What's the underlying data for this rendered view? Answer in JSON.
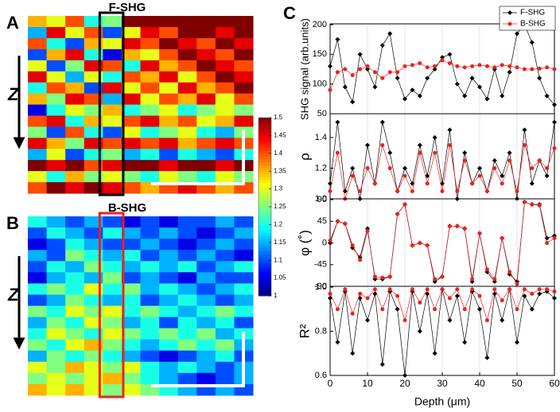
{
  "chart_data": [
    {
      "type": "heatmap",
      "label": "A",
      "title": "F-SHG",
      "axis_label": "Z",
      "zlim": [
        1,
        1.5
      ],
      "zticks": [
        1.5,
        1.45,
        1.4,
        1.35,
        1.3,
        1.25,
        1.2,
        1.15,
        1.1,
        1.05,
        1
      ],
      "values": [
        [
          1.35,
          1.3,
          1.4,
          1.2,
          1.25,
          1.5,
          1.5,
          1.5,
          1.5,
          1.5,
          1.5,
          1.5
        ],
        [
          1.15,
          1.45,
          1.3,
          1.4,
          1.1,
          1.3,
          1.45,
          1.4,
          1.5,
          1.5,
          1.45,
          1.5
        ],
        [
          1.4,
          1.2,
          1.1,
          1.35,
          1.3,
          1.45,
          1.4,
          1.5,
          1.45,
          1.4,
          1.5,
          1.45
        ],
        [
          1.1,
          1.35,
          1.45,
          1.2,
          1.05,
          1.35,
          1.3,
          1.4,
          1.5,
          1.45,
          1.4,
          1.5
        ],
        [
          1.3,
          1.1,
          1.25,
          1.45,
          1.4,
          1.2,
          1.45,
          1.35,
          1.4,
          1.5,
          1.45,
          1.4
        ],
        [
          1.45,
          1.3,
          1.15,
          1.3,
          1.2,
          1.4,
          1.35,
          1.45,
          1.3,
          1.4,
          1.5,
          1.45
        ],
        [
          1.2,
          1.4,
          1.35,
          1.1,
          1.45,
          1.3,
          1.4,
          1.3,
          1.45,
          1.35,
          1.4,
          1.5
        ],
        [
          1.35,
          1.25,
          1.45,
          1.4,
          1.15,
          1.45,
          1.3,
          1.4,
          1.35,
          1.45,
          1.3,
          1.4
        ],
        [
          1.05,
          1.2,
          1.3,
          1.25,
          1.35,
          1.2,
          1.25,
          1.3,
          1.2,
          1.25,
          1.3,
          1.25
        ],
        [
          1.4,
          1.45,
          1.2,
          1.35,
          1.3,
          1.4,
          1.45,
          1.35,
          1.4,
          1.3,
          1.35,
          1.45
        ],
        [
          1.25,
          1.1,
          1.4,
          1.2,
          1.1,
          1.3,
          1.2,
          1.25,
          1.3,
          1.2,
          1.15,
          1.25
        ],
        [
          1.45,
          1.35,
          1.25,
          1.45,
          1.4,
          1.45,
          1.4,
          1.45,
          1.35,
          1.4,
          1.45,
          1.4
        ],
        [
          1.15,
          1.3,
          1.1,
          1.2,
          1.25,
          1.15,
          1.2,
          1.1,
          1.2,
          1.15,
          1.1,
          1.2
        ],
        [
          1.5,
          1.45,
          1.5,
          1.4,
          1.45,
          1.5,
          1.5,
          1.45,
          1.5,
          1.5,
          1.45,
          1.5
        ],
        [
          1.3,
          1.2,
          1.35,
          1.25,
          1.3,
          1.25,
          1.2,
          1.3,
          1.25,
          1.2,
          1.3,
          1.25
        ],
        [
          1.4,
          1.5,
          1.45,
          1.5,
          1.45,
          1.4,
          1.35,
          1.4,
          1.45,
          1.4,
          1.35,
          1.4
        ]
      ]
    },
    {
      "type": "heatmap",
      "label": "B",
      "title": "B-SHG",
      "axis_label": "Z",
      "zlim": [
        1,
        1.5
      ],
      "values": [
        [
          1.2,
          1.15,
          1.1,
          1.15,
          1.1,
          1.05,
          1.1,
          1.05,
          1.1,
          1.1,
          1.15,
          1.1
        ],
        [
          1.1,
          1.2,
          1.15,
          1.1,
          1.2,
          1.15,
          1.1,
          1.15,
          1.1,
          1.05,
          1.1,
          1.15
        ],
        [
          1.05,
          1.1,
          1.2,
          1.15,
          1.1,
          1.1,
          1.15,
          1.1,
          1.05,
          1.1,
          1.15,
          1.1
        ],
        [
          1.15,
          1.1,
          1.25,
          1.2,
          1.15,
          1.2,
          1.1,
          1.15,
          1.1,
          1.15,
          1.1,
          1.05
        ],
        [
          1.1,
          1.2,
          1.15,
          1.25,
          1.2,
          1.15,
          1.2,
          1.15,
          1.2,
          1.1,
          1.15,
          1.2
        ],
        [
          1.05,
          1.15,
          1.2,
          1.15,
          1.25,
          1.1,
          1.15,
          1.1,
          1.05,
          1.15,
          1.1,
          1.1
        ],
        [
          1.2,
          1.25,
          1.2,
          1.3,
          1.2,
          1.25,
          1.15,
          1.2,
          1.15,
          1.1,
          1.15,
          1.2
        ],
        [
          1.1,
          1.15,
          1.25,
          1.2,
          1.15,
          1.2,
          1.1,
          1.15,
          1.2,
          1.15,
          1.1,
          1.15
        ],
        [
          1.25,
          1.2,
          1.3,
          1.25,
          1.3,
          1.2,
          1.25,
          1.2,
          1.15,
          1.2,
          1.25,
          1.2
        ],
        [
          1.15,
          1.25,
          1.2,
          1.3,
          1.25,
          1.15,
          1.2,
          1.1,
          1.2,
          1.15,
          1.2,
          1.1
        ],
        [
          1.2,
          1.3,
          1.25,
          1.2,
          1.3,
          1.25,
          1.2,
          1.25,
          1.2,
          1.25,
          1.15,
          1.2
        ],
        [
          1.25,
          1.2,
          1.3,
          1.35,
          1.25,
          1.2,
          1.15,
          1.2,
          1.25,
          1.2,
          1.25,
          1.15
        ],
        [
          1.15,
          1.25,
          1.2,
          1.25,
          1.2,
          1.15,
          1.1,
          1.05,
          1.1,
          1.15,
          1.2,
          1.1
        ],
        [
          1.3,
          1.25,
          1.35,
          1.3,
          1.25,
          1.3,
          1.2,
          1.15,
          1.2,
          1.15,
          1.1,
          1.15
        ],
        [
          1.25,
          1.3,
          1.25,
          1.3,
          1.35,
          1.25,
          1.2,
          1.15,
          1.1,
          1.05,
          1.1,
          1.15
        ],
        [
          1.35,
          1.3,
          1.35,
          1.3,
          1.25,
          1.3,
          1.25,
          1.2,
          1.15,
          1.1,
          1.15,
          1.1
        ]
      ]
    },
    {
      "type": "line",
      "label": "C",
      "xlabel": "Depth (μm)",
      "xlim": [
        0,
        60
      ],
      "xticks": [
        0,
        10,
        20,
        30,
        40,
        50,
        60
      ],
      "grid": true,
      "legend": "upper right",
      "x": [
        0,
        2,
        4,
        6,
        8,
        10,
        12,
        14,
        16,
        18,
        20,
        22,
        24,
        26,
        28,
        30,
        32,
        34,
        36,
        38,
        40,
        42,
        44,
        46,
        48,
        50,
        52,
        54,
        56,
        58,
        60
      ],
      "panels": [
        {
          "ylabel": "SHG signal (arb.units)",
          "ylim": [
            50,
            200
          ],
          "yticks": [
            50,
            100,
            150,
            200
          ],
          "series": [
            {
              "name": "F-SHG",
              "color": "#000000",
              "values": [
                130,
                175,
                95,
                70,
                150,
                125,
                95,
                165,
                185,
                110,
                75,
                90,
                80,
                110,
                125,
                145,
                150,
                100,
                80,
                110,
                95,
                75,
                125,
                80,
                120,
                185,
                200,
                170,
                110,
                80,
                65
              ]
            },
            {
              "name": "B-SHG",
              "color": "#e8231f",
              "values": [
                90,
                120,
                125,
                115,
                125,
                130,
                120,
                110,
                120,
                120,
                130,
                132,
                135,
                128,
                130,
                140,
                135,
                130,
                128,
                130,
                132,
                130,
                128,
                132,
                130,
                128,
                125,
                125,
                126,
                128,
                125
              ]
            }
          ]
        },
        {
          "ylabel": "ρ",
          "ylim": [
            1,
            1.55
          ],
          "yticks": [
            {
              "value": 1,
              "label": "1.0"
            },
            1.2,
            1.4
          ],
          "series": [
            {
              "name": "F-SHG",
              "color": "#000000",
              "values": [
                1.1,
                1.5,
                1.05,
                1.2,
                1.0,
                1.35,
                1.1,
                1.5,
                1.3,
                1.05,
                1.2,
                1.1,
                1.35,
                1.15,
                1.4,
                1.1,
                1.45,
                1.0,
                1.3,
                1.1,
                1.2,
                1.05,
                1.25,
                1.15,
                1.3,
                1.0,
                1.45,
                1.1,
                1.25,
                1.15,
                1.5
              ]
            },
            {
              "name": "B-SHG",
              "color": "#e8231f",
              "values": [
                1.05,
                1.3,
                1.0,
                1.15,
                1.05,
                1.2,
                1.1,
                1.35,
                1.2,
                1.05,
                1.15,
                1.05,
                1.3,
                1.1,
                1.3,
                1.05,
                1.35,
                1.05,
                1.25,
                1.1,
                1.15,
                1.05,
                1.2,
                1.1,
                1.25,
                1.05,
                1.35,
                1.2,
                1.25,
                1.2,
                1.33
              ]
            }
          ]
        },
        {
          "ylabel": "φ (˚)",
          "ylim": [
            -90,
            90
          ],
          "yticks": [
            -90,
            -45,
            0,
            45,
            90
          ],
          "series": [
            {
              "name": "F-SHG",
              "color": "#000000",
              "values": [
                0,
                45,
                40,
                -10,
                -30,
                30,
                -75,
                -75,
                -70,
                60,
                80,
                -5,
                0,
                -5,
                -80,
                -70,
                35,
                35,
                30,
                -80,
                20,
                -60,
                -80,
                10,
                -65,
                -80,
                85,
                80,
                80,
                10,
                15
              ]
            },
            {
              "name": "B-SHG",
              "color": "#e8231f",
              "values": [
                5,
                45,
                40,
                -5,
                -35,
                25,
                -70,
                -72,
                -70,
                60,
                80,
                -5,
                0,
                -5,
                -75,
                -70,
                35,
                35,
                30,
                -75,
                20,
                -55,
                -75,
                10,
                -60,
                -85,
                85,
                80,
                78,
                0,
                10
              ]
            }
          ]
        },
        {
          "ylabel": "R²",
          "ylim": [
            0.6,
            1
          ],
          "yticks": [
            0.6,
            0.8,
            {
              "value": 1,
              "label": "1.0"
            }
          ],
          "series": [
            {
              "name": "F-SHG",
              "color": "#000000",
              "values": [
                0.95,
                0.75,
                0.98,
                0.7,
                0.95,
                0.85,
                0.97,
                0.65,
                0.98,
                0.9,
                0.6,
                0.98,
                0.8,
                0.97,
                0.7,
                0.99,
                0.85,
                0.96,
                0.75,
                0.98,
                0.9,
                0.68,
                0.97,
                0.85,
                0.99,
                0.75,
                0.96,
                0.9,
                0.97,
                0.98,
                0.95
              ]
            },
            {
              "name": "B-SHG",
              "color": "#e8231f",
              "values": [
                0.97,
                0.9,
                0.99,
                0.88,
                0.97,
                0.95,
                0.99,
                0.9,
                0.99,
                0.96,
                0.85,
                0.99,
                0.93,
                0.99,
                0.9,
                0.99,
                0.95,
                0.99,
                0.9,
                0.99,
                0.96,
                0.85,
                0.99,
                0.94,
                0.99,
                0.9,
                0.99,
                0.97,
                0.99,
                0.99,
                0.98
              ]
            }
          ]
        }
      ]
    }
  ]
}
